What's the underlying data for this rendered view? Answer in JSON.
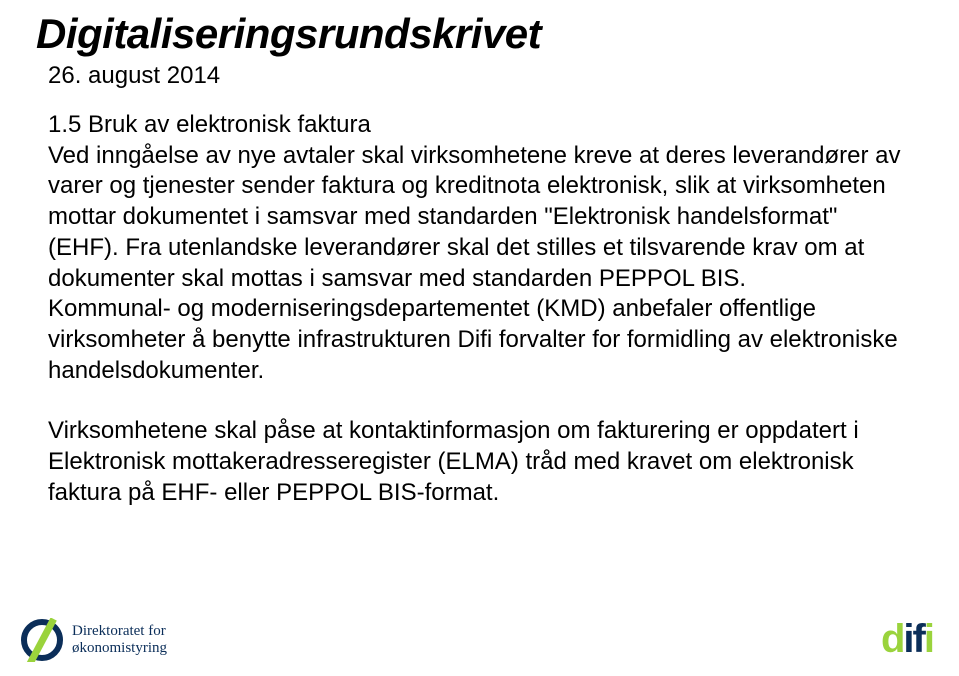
{
  "title": "Digitaliseringsrundskrivet",
  "date": "26. august 2014",
  "paragraphs": {
    "p1": "1.5 Bruk av elektronisk faktura\nVed inngåelse av nye avtaler skal virksomhetene kreve at deres leverandører av varer og tjenester sender faktura og kreditnota elektronisk, slik at virksomheten mottar dokumentet i samsvar med standarden \"Elektronisk handelsformat\" (EHF). Fra utenlandske leverandører skal det stilles et tilsvarende krav om at dokumenter skal mottas i samsvar med standarden PEPPOL BIS.\nKommunal- og moderniseringsdepartementet (KMD) anbefaler offentlige virksomheter å benytte infrastrukturen Difi forvalter for formidling av elektroniske handelsdokumenter.",
    "p2": "Virksomhetene skal påse at kontaktinformasjon om fakturering er oppdatert i Elektronisk mottakeradresseregister (ELMA) tråd med kravet om elektronisk faktura på EHF- eller PEPPOL BIS-format."
  },
  "logo_left": {
    "line1": "Direktoratet for",
    "line2": "økonomistyring",
    "icon_colors": {
      "circle": "#0b2e59",
      "slash": "#9ad33c"
    },
    "text_color": "#0b2e59"
  },
  "logo_right": {
    "text": "difi",
    "colors": {
      "d": "#9ad33c",
      "i1": "#0b2e59",
      "f": "#0b2e59",
      "i2": "#9ad33c"
    }
  },
  "colors": {
    "background": "#ffffff",
    "text": "#000000"
  },
  "typography": {
    "title_fontsize": 42,
    "title_weight": "bold",
    "title_style": "italic",
    "body_fontsize": 24,
    "date_fontsize": 24,
    "font_family": "Arial"
  }
}
